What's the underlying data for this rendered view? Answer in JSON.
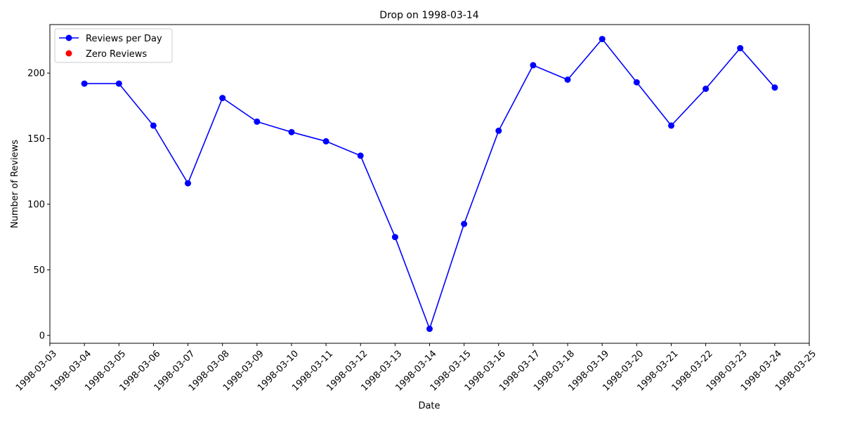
{
  "chart_data": {
    "type": "line",
    "title": "Drop on 1998-03-14",
    "xlabel": "Date",
    "ylabel": "Number of Reviews",
    "x_ticks": [
      "1998-03-03",
      "1998-03-04",
      "1998-03-05",
      "1998-03-06",
      "1998-03-07",
      "1998-03-08",
      "1998-03-09",
      "1998-03-10",
      "1998-03-11",
      "1998-03-12",
      "1998-03-13",
      "1998-03-14",
      "1998-03-15",
      "1998-03-16",
      "1998-03-17",
      "1998-03-18",
      "1998-03-19",
      "1998-03-20",
      "1998-03-21",
      "1998-03-22",
      "1998-03-23",
      "1998-03-24",
      "1998-03-25"
    ],
    "xlim": [
      "1998-03-03",
      "1998-03-25"
    ],
    "ylim": [
      -6,
      237
    ],
    "y_ticks": [
      0,
      50,
      100,
      150,
      200
    ],
    "grid": false,
    "legend_position": "top-left",
    "series": [
      {
        "name": "Reviews per Day",
        "color": "#0000ff",
        "marker": "circle",
        "x": [
          "1998-03-04",
          "1998-03-05",
          "1998-03-06",
          "1998-03-07",
          "1998-03-08",
          "1998-03-09",
          "1998-03-10",
          "1998-03-11",
          "1998-03-12",
          "1998-03-13",
          "1998-03-14",
          "1998-03-15",
          "1998-03-16",
          "1998-03-17",
          "1998-03-18",
          "1998-03-19",
          "1998-03-20",
          "1998-03-21",
          "1998-03-22",
          "1998-03-23",
          "1998-03-24"
        ],
        "values": [
          192,
          192,
          160,
          116,
          181,
          163,
          155,
          148,
          137,
          75,
          5,
          85,
          156,
          206,
          195,
          226,
          193,
          160,
          188,
          219,
          189
        ]
      },
      {
        "name": "Zero Reviews",
        "color": "#ff0000",
        "marker": "circle",
        "x": [],
        "values": []
      }
    ]
  }
}
